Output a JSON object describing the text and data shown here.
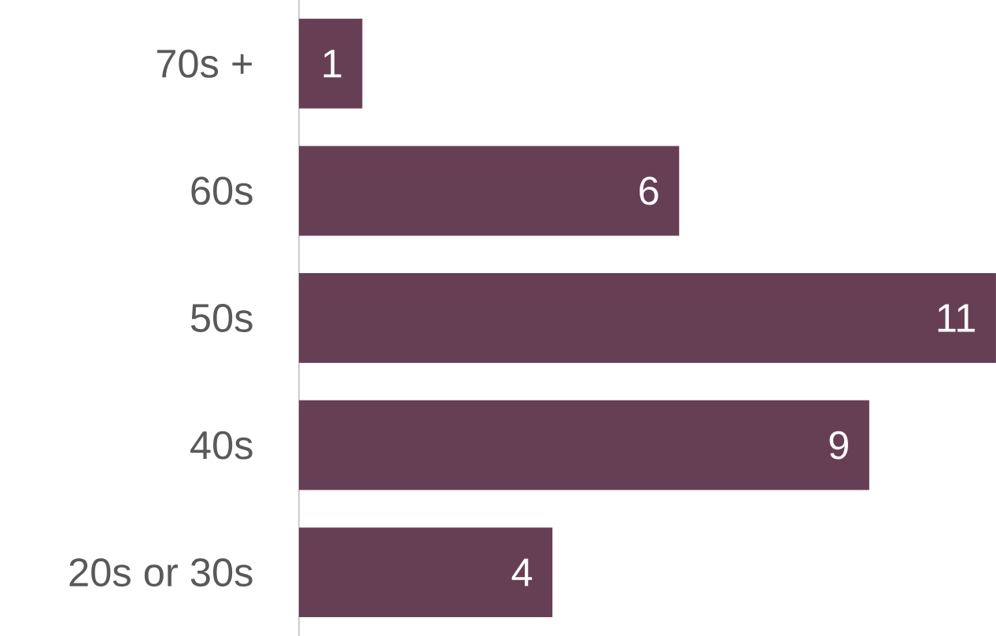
{
  "chart_data": {
    "type": "bar",
    "orientation": "horizontal",
    "categories": [
      "70s +",
      "60s",
      "50s",
      "40s",
      "20s or 30s"
    ],
    "values": [
      1,
      6,
      11,
      9,
      4
    ],
    "color": "#673f55",
    "data_labels": true
  }
}
